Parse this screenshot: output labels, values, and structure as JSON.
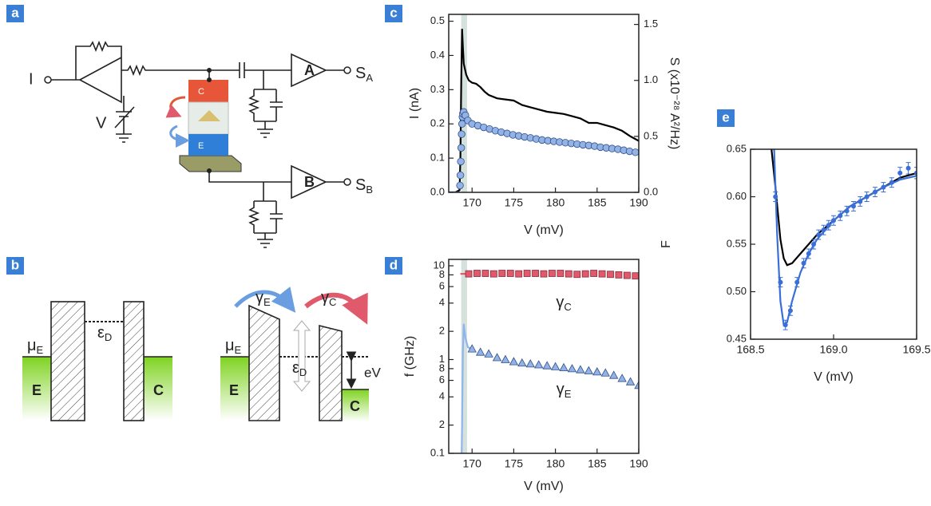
{
  "panel_labels": [
    "a",
    "b",
    "c",
    "d",
    "e"
  ],
  "circuit": {
    "input": "I",
    "bias": "V",
    "amp_a": "A",
    "amp_b": "B",
    "out_a": {
      "sym": "S",
      "sub": "A"
    },
    "out_b": {
      "sym": "S",
      "sub": "B"
    },
    "top": "C",
    "bottom": "E"
  },
  "bands": {
    "left": {
      "mu": {
        "sym": "μ",
        "sub": "E"
      },
      "eps": {
        "sym": "ε",
        "sub": "D"
      },
      "emitter": "E",
      "collector": "C"
    },
    "right": {
      "mu": {
        "sym": "μ",
        "sub": "E"
      },
      "eps": {
        "sym": "ε",
        "sub": "D"
      },
      "emitter": "E",
      "collector": "C",
      "bias": "eV",
      "gamma_e": {
        "sym": "γ",
        "sub": "E"
      },
      "gamma_c": {
        "sym": "γ",
        "sub": "C"
      }
    }
  },
  "chart_data": [
    {
      "type": "line",
      "xlabel": "V (mV)",
      "ylabel": "I (nA)",
      "y2label": "S (x10⁻²⁸ A²/Hz)",
      "xlim": [
        167.2,
        190
      ],
      "xticks": [
        170,
        175,
        180,
        185,
        190
      ],
      "ylim": [
        0,
        0.52
      ],
      "yticks": [
        {
          "value": 0,
          "label": "0.0"
        },
        0.1,
        0.2,
        0.3,
        0.4,
        0.5
      ],
      "y2lim": [
        0,
        1.59
      ],
      "y2ticks": [
        {
          "value": 0,
          "label": "0.0"
        },
        0.5,
        {
          "value": 1,
          "label": "1.0"
        },
        1.5
      ],
      "shaded_x": [
        168.7,
        169.4
      ],
      "series": [
        {
          "axis": "y2",
          "color": "#000000",
          "x": [
            167.2,
            168.0,
            168.5,
            168.6,
            168.7,
            168.8,
            168.9,
            169.0,
            169.3,
            169.6,
            170.0,
            170.5,
            171.0,
            171.5,
            172.0,
            173.0,
            174.0,
            175.0,
            176.0,
            177.0,
            178.0,
            179.0,
            180.0,
            181.0,
            182.0,
            183.0,
            184.0,
            185.0,
            186.0,
            187.0,
            188.0,
            189.0,
            190.0
          ],
          "values": [
            0,
            0,
            0.02,
            0.3,
            1.0,
            1.46,
            1.3,
            1.15,
            1.05,
            1.0,
            0.98,
            0.97,
            0.94,
            0.9,
            0.87,
            0.84,
            0.83,
            0.82,
            0.78,
            0.76,
            0.74,
            0.72,
            0.71,
            0.7,
            0.68,
            0.66,
            0.62,
            0.62,
            0.6,
            0.58,
            0.55,
            0.5,
            0.46
          ]
        },
        {
          "color": "#4f7fcf",
          "x": [
            167.2,
            168.5
          ],
          "values": [
            0,
            0
          ]
        },
        {
          "color": "#93b3e6",
          "marker": "circle",
          "x": [
            168.55,
            168.6,
            168.65,
            168.7,
            168.75,
            168.8,
            168.85,
            168.9,
            169.0,
            169.2,
            169.5,
            170.0,
            170.7,
            171.4,
            172.1,
            172.8,
            173.5,
            174.2,
            174.9,
            175.6,
            176.3,
            177.0,
            177.7,
            178.4,
            179.1,
            179.8,
            180.5,
            181.2,
            181.9,
            182.6,
            183.3,
            184.0,
            184.7,
            185.4,
            186.1,
            186.8,
            187.5,
            188.2,
            188.9,
            189.6
          ],
          "values": [
            0.02,
            0.05,
            0.09,
            0.13,
            0.17,
            0.2,
            0.22,
            0.23,
            0.235,
            0.225,
            0.21,
            0.2,
            0.195,
            0.19,
            0.185,
            0.18,
            0.176,
            0.172,
            0.168,
            0.165,
            0.162,
            0.159,
            0.156,
            0.153,
            0.151,
            0.149,
            0.147,
            0.145,
            0.143,
            0.141,
            0.139,
            0.137,
            0.135,
            0.132,
            0.13,
            0.128,
            0.126,
            0.123,
            0.12,
            0.117
          ]
        }
      ]
    },
    {
      "type": "line",
      "ylog": true,
      "xlabel": "V (mV)",
      "ylabel": "f (GHz)",
      "xlim": [
        167.2,
        190
      ],
      "xticks": [
        170,
        175,
        180,
        185,
        190
      ],
      "ylim": [
        0.1,
        11.7
      ],
      "yticks": [
        0.1,
        {
          "value": 0.2,
          "label": "2"
        },
        {
          "value": 0.4,
          "label": "4"
        },
        {
          "value": 0.6,
          "label": "6"
        },
        {
          "value": 0.8,
          "label": "8"
        },
        1,
        2,
        4,
        6,
        8,
        10
      ],
      "shaded_x": [
        168.7,
        169.4
      ],
      "annotations": [
        {
          "sym": "γ",
          "sub": "C",
          "x": 181,
          "y": 4
        },
        {
          "sym": "γ",
          "sub": "E",
          "x": 181,
          "y": 0.47
        }
      ],
      "series": [
        {
          "color": "#e05a6c",
          "x": [
            168.6,
            169.6
          ],
          "values": [
            8.2,
            8.2
          ]
        },
        {
          "color": "#e05a6c",
          "marker": "square",
          "x": [
            169.6,
            170.6,
            171.6,
            172.6,
            173.6,
            174.6,
            175.6,
            176.6,
            177.6,
            178.6,
            179.6,
            180.6,
            181.6,
            182.6,
            183.6,
            184.6,
            185.6,
            186.6,
            187.6,
            188.6,
            189.6
          ],
          "values": [
            8.2,
            8.3,
            8.3,
            8.2,
            8.3,
            8.3,
            8.2,
            8.3,
            8.3,
            8.2,
            8.3,
            8.3,
            8.2,
            8.1,
            8.2,
            8.3,
            8.2,
            8.1,
            8.0,
            7.9,
            7.8
          ]
        },
        {
          "color": "#8fb4ef",
          "x": [
            168.75,
            168.8,
            168.85,
            168.9,
            169.0,
            169.2,
            169.5,
            170.0
          ],
          "values": [
            0.1,
            0.2,
            0.5,
            1.2,
            2.4,
            1.7,
            1.35,
            1.3
          ]
        },
        {
          "color": "#93b3e6",
          "marker": "triangle",
          "x": [
            170,
            171,
            172,
            173,
            174,
            175,
            176,
            177,
            178,
            179,
            180,
            181,
            182,
            183,
            184,
            185,
            186,
            187,
            188,
            189,
            190
          ],
          "values": [
            1.3,
            1.2,
            1.15,
            1.05,
            1.0,
            0.95,
            0.92,
            0.9,
            0.88,
            0.86,
            0.84,
            0.82,
            0.8,
            0.78,
            0.76,
            0.74,
            0.72,
            0.68,
            0.63,
            0.58,
            0.53
          ]
        }
      ]
    },
    {
      "type": "line",
      "xlabel": "V (mV)",
      "ylabel": "F",
      "xlim": [
        168.5,
        169.5
      ],
      "xticks": [
        168.5,
        {
          "value": 169,
          "label": "169.0"
        },
        169.5
      ],
      "ylim": [
        0.45,
        0.65
      ],
      "yticks": [
        0.45,
        {
          "value": 0.5,
          "label": "0.50"
        },
        0.55,
        {
          "value": 0.6,
          "label": "0.60"
        },
        0.65
      ],
      "series": [
        {
          "color": "#000000",
          "x": [
            168.62,
            168.65,
            168.68,
            168.7,
            168.72,
            168.75,
            168.8,
            168.85,
            168.9,
            169.0,
            169.1,
            169.2,
            169.3,
            169.4,
            169.5
          ],
          "values": [
            0.66,
            0.61,
            0.555,
            0.535,
            0.528,
            0.53,
            0.54,
            0.55,
            0.56,
            0.575,
            0.59,
            0.6,
            0.61,
            0.62,
            0.625
          ]
        },
        {
          "color": "#3a6fd8",
          "x": [
            168.64,
            168.66,
            168.68,
            168.7,
            168.72,
            168.75,
            168.8,
            168.85,
            168.9,
            169.0,
            169.1,
            169.2,
            169.3,
            169.4,
            169.5
          ],
          "values": [
            0.66,
            0.56,
            0.49,
            0.465,
            0.468,
            0.49,
            0.52,
            0.54,
            0.555,
            0.575,
            0.59,
            0.6,
            0.61,
            0.618,
            0.622
          ]
        },
        {
          "color": "#3a6fd8",
          "marker": "dot",
          "x": [
            168.65,
            168.68,
            168.71,
            168.74,
            168.78,
            168.82,
            168.85,
            168.88,
            168.91,
            168.94,
            168.97,
            169.0,
            169.04,
            169.08,
            169.12,
            169.16,
            169.2,
            169.25,
            169.3,
            169.35,
            169.4,
            169.45,
            169.5
          ],
          "values": [
            0.6,
            0.51,
            0.465,
            0.48,
            0.51,
            0.53,
            0.54,
            0.55,
            0.56,
            0.565,
            0.57,
            0.575,
            0.58,
            0.585,
            0.59,
            0.595,
            0.6,
            0.605,
            0.61,
            0.615,
            0.625,
            0.63,
            0.625
          ],
          "errors": [
            0.005,
            0.005,
            0.005,
            0.005,
            0.005,
            0.005,
            0.005,
            0.005,
            0.005,
            0.005,
            0.005,
            0.005,
            0.005,
            0.005,
            0.005,
            0.005,
            0.005,
            0.005,
            0.005,
            0.005,
            0.006,
            0.006,
            0.006
          ]
        }
      ]
    }
  ]
}
